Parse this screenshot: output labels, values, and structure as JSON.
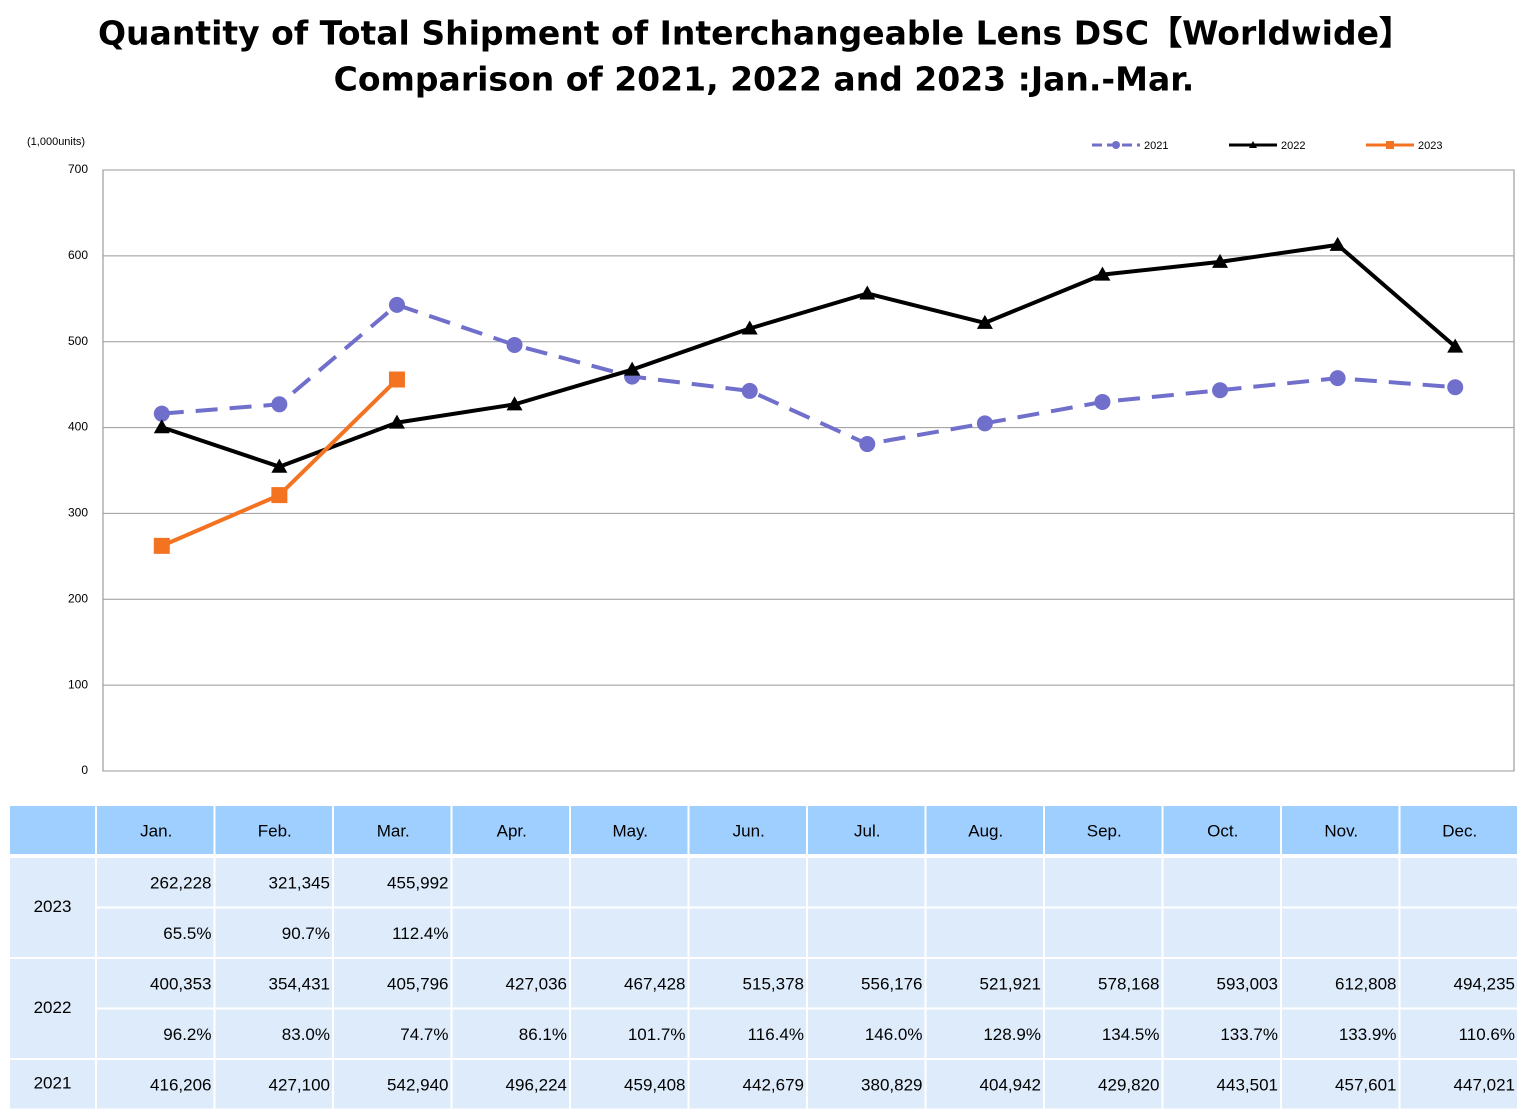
{
  "chart_data": {
    "type": "line",
    "title": "Quantity of Total Shipment of Interchangeable Lens DSC【Worldwide】",
    "subtitle": "Comparison of 2021, 2022 and 2023 :Jan.-Mar.",
    "y_label": "(1,000units)",
    "categories": [
      "Jan.",
      "Feb.",
      "Mar.",
      "Apr.",
      "May.",
      "Jun.",
      "Jul.",
      "Aug.",
      "Sep.",
      "Oct.",
      "Nov.",
      "Dec."
    ],
    "ylim": [
      0,
      700
    ],
    "yticks": [
      0,
      100,
      200,
      300,
      400,
      500,
      600,
      700
    ],
    "grid": true,
    "legend": "top-right",
    "series": [
      {
        "name": "2021",
        "color": "#7070cc",
        "dash": true,
        "marker": "circle",
        "values": [
          416.206,
          427.1,
          542.94,
          496.224,
          459.408,
          442.679,
          380.829,
          404.942,
          429.82,
          443.501,
          457.601,
          447.021
        ],
        "value_labels": [
          "416,206",
          "427,100",
          "542,940",
          "496,224",
          "459,408",
          "442,679",
          "380,829",
          "404,942",
          "429,820",
          "443,501",
          "457,601",
          "447,021"
        ]
      },
      {
        "name": "2022",
        "color": "#000000",
        "dash": false,
        "marker": "triangle",
        "values": [
          400.353,
          354.431,
          405.796,
          427.036,
          467.428,
          515.378,
          556.176,
          521.921,
          578.168,
          593.003,
          612.808,
          494.235
        ],
        "value_labels": [
          "400,353",
          "354,431",
          "405,796",
          "427,036",
          "467,428",
          "515,378",
          "556,176",
          "521,921",
          "578,168",
          "593,003",
          "612,808",
          "494,235"
        ],
        "ratios": [
          "96.2%",
          "83.0%",
          "74.7%",
          "86.1%",
          "101.7%",
          "116.4%",
          "146.0%",
          "128.9%",
          "134.5%",
          "133.7%",
          "133.9%",
          "110.6%"
        ]
      },
      {
        "name": "2023",
        "color": "#f47321",
        "dash": false,
        "marker": "square",
        "values": [
          262.228,
          321.345,
          455.992,
          null,
          null,
          null,
          null,
          null,
          null,
          null,
          null,
          null
        ],
        "value_labels": [
          "262,228",
          "321,345",
          "455,992",
          null,
          null,
          null,
          null,
          null,
          null,
          null,
          null,
          null
        ],
        "ratios": [
          "65.5%",
          "90.7%",
          "112.4%",
          null,
          null,
          null,
          null,
          null,
          null,
          null,
          null,
          null
        ]
      }
    ]
  }
}
